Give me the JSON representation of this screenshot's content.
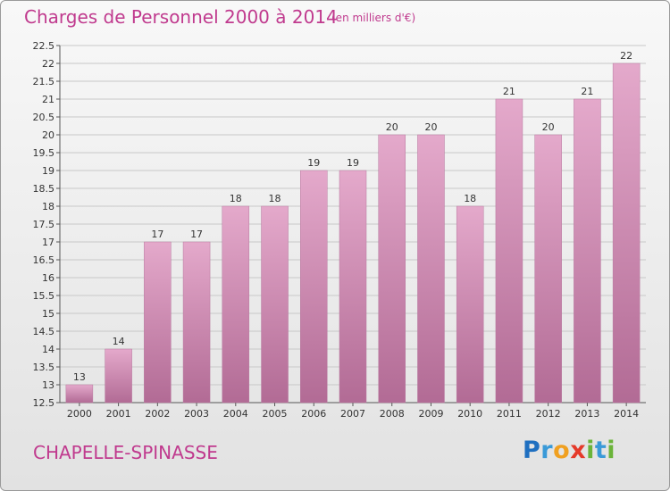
{
  "header": {
    "title": "Charges de Personnel 2000 à 2014",
    "unit_note": "(en milliers d'€)"
  },
  "footer": {
    "commune": "CHAPELLE-SPINASSE",
    "logo_text": "Proxiti"
  },
  "colors": {
    "bar_top": "#e4a9cb",
    "bar_bottom": "#b26b95",
    "accent": "#c03a8e"
  },
  "chart_data": {
    "type": "bar",
    "title": "Charges de Personnel 2000 à 2014",
    "subtitle": "(en milliers d'€)",
    "categories": [
      "2000",
      "2001",
      "2002",
      "2003",
      "2004",
      "2005",
      "2006",
      "2007",
      "2008",
      "2009",
      "2010",
      "2011",
      "2012",
      "2013",
      "2014"
    ],
    "values": [
      13,
      14,
      17,
      17,
      18,
      18,
      19,
      19,
      20,
      20,
      18,
      21,
      20,
      21,
      22
    ],
    "ylim": [
      12.5,
      22.5
    ],
    "yticks": [
      12.5,
      13,
      13.5,
      14,
      14.5,
      15,
      15.5,
      16,
      16.5,
      17,
      17.5,
      18,
      18.5,
      19,
      19.5,
      20,
      20.5,
      21,
      21.5,
      22,
      22.5
    ],
    "grid": true,
    "legend": "none"
  }
}
